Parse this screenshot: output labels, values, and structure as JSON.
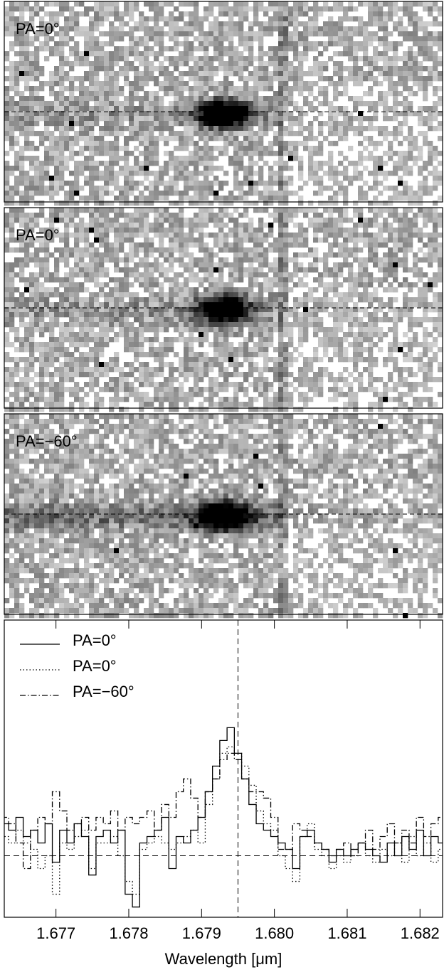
{
  "chart_data": [
    {
      "type": "image",
      "label": "PA=0°"
    },
    {
      "type": "image",
      "label": "PA=0°"
    },
    {
      "type": "image",
      "label": "PA=−60°"
    },
    {
      "type": "line",
      "xlabel": "Wavelength [μm]",
      "xlim": [
        1.67629,
        1.68231
      ],
      "ylim": [
        -0.48,
        1.84
      ],
      "xticks": [
        1.677,
        1.678,
        1.679,
        {
          "value": 1.68,
          "label": "1.680"
        },
        1.681,
        1.682
      ],
      "vline": 1.6795,
      "hline": 0,
      "legend": "upper left",
      "step": true,
      "x": [
        1.6763,
        1.6764,
        1.6765,
        1.6766,
        1.6767,
        1.6768,
        1.6769,
        1.677,
        1.6771,
        1.6772,
        1.6773,
        1.6774,
        1.6775,
        1.6776,
        1.6777,
        1.6778,
        1.6779,
        1.678,
        1.6781,
        1.6782,
        1.6783,
        1.6784,
        1.6785,
        1.6786,
        1.6787,
        1.6788,
        1.6789,
        1.679,
        1.6791,
        1.6792,
        1.6793,
        1.6794,
        1.6795,
        1.6796,
        1.6797,
        1.6798,
        1.6799,
        1.68,
        1.6801,
        1.6802,
        1.6803,
        1.6804,
        1.6805,
        1.6806,
        1.6807,
        1.6808,
        1.6809,
        1.681,
        1.6811,
        1.6812,
        1.6813,
        1.6814,
        1.6815,
        1.6816,
        1.6817,
        1.6818,
        1.6819,
        1.682,
        1.6821,
        1.6822,
        1.6823
      ],
      "series": [
        {
          "name": "PA=0°",
          "color": "#000000",
          "dash": "solid",
          "values": [
            0.25,
            0.2,
            0.3,
            0.15,
            0.2,
            0.1,
            0.25,
            -0.05,
            0.2,
            0.1,
            0.25,
            0.15,
            -0.15,
            0.15,
            0.2,
            0.1,
            0.2,
            -0.3,
            -0.4,
            0.1,
            0.15,
            0.2,
            0.3,
            -0.1,
            0.15,
            0.1,
            0.2,
            0.3,
            0.5,
            0.7,
            0.9,
            1.0,
            0.8,
            0.6,
            0.4,
            0.25,
            0.2,
            0.15,
            0.1,
            0.05,
            -0.1,
            0.15,
            0.2,
            0.1,
            0.05,
            -0.05,
            0.05,
            0.0,
            0.05,
            0.1,
            0.05,
            0.0,
            -0.05,
            0.1,
            0.0,
            0.15,
            0.05,
            0.2,
            0.0,
            0.15,
            0.1
          ]
        },
        {
          "name": "PA=0°",
          "color": "#000000",
          "dash": "dotted",
          "values": [
            0.15,
            0.1,
            0.2,
            0.1,
            0.05,
            -0.1,
            0.0,
            -0.3,
            0.1,
            0.05,
            0.15,
            0.2,
            -0.1,
            0.1,
            0.1,
            0.15,
            0.0,
            -0.2,
            -0.3,
            0.05,
            0.1,
            0.15,
            0.1,
            0.05,
            0.1,
            0.15,
            0.2,
            0.1,
            0.4,
            0.6,
            0.8,
            0.85,
            0.8,
            0.7,
            0.55,
            0.35,
            0.25,
            0.2,
            0.0,
            -0.1,
            -0.2,
            0.15,
            0.25,
            0.05,
            0.0,
            -0.1,
            0.0,
            -0.05,
            0.05,
            0.1,
            0.0,
            -0.05,
            0.05,
            0.0,
            0.1,
            -0.05,
            0.15,
            0.0,
            0.1,
            -0.05,
            0.05
          ]
        },
        {
          "name": "PA=−60°",
          "color": "#000000",
          "dash": "dashdot",
          "values": [
            0.3,
            0.25,
            0.1,
            -0.1,
            0.2,
            0.3,
            0.25,
            0.5,
            0.35,
            0.2,
            0.25,
            0.3,
            0.2,
            0.3,
            0.25,
            0.35,
            0.2,
            0.3,
            0.25,
            0.3,
            0.35,
            0.2,
            0.4,
            0.3,
            0.5,
            0.6,
            0.45,
            0.3,
            0.5,
            0.6,
            0.75,
            0.8,
            0.75,
            0.6,
            0.5,
            0.5,
            0.45,
            0.3,
            0.05,
            0.05,
            0.25,
            0.2,
            0.15,
            0.1,
            0.05,
            0.0,
            0.05,
            0.1,
            0.0,
            0.1,
            0.2,
            0.05,
            0.15,
            0.25,
            0.1,
            0.2,
            0.1,
            0.3,
            0.15,
            0.25,
            0.3
          ]
        }
      ]
    }
  ]
}
